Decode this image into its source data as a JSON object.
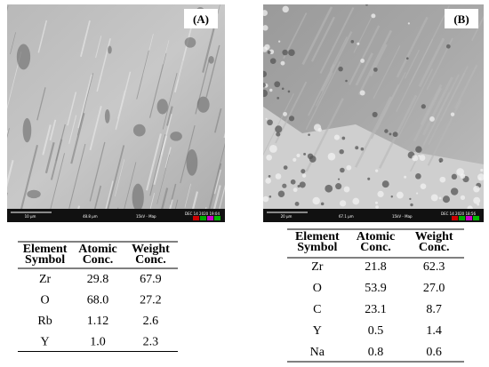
{
  "panels": [
    {
      "label": "(A)",
      "info_bar": {
        "scale": "10 µm",
        "field": "48.8 µm",
        "mode": "15kV - Map",
        "date": "DEC 14 2020 19:04"
      },
      "table": {
        "headers": [
          [
            "Element",
            "Symbol"
          ],
          [
            "Atomic",
            "Conc."
          ],
          [
            "Weight",
            "Conc."
          ]
        ],
        "rows": [
          [
            "Zr",
            "29.8",
            "67.9"
          ],
          [
            "O",
            "68.0",
            "27.2"
          ],
          [
            "Rb",
            "1.12",
            "2.6"
          ],
          [
            "Y",
            "1.0",
            "2.3"
          ]
        ]
      }
    },
    {
      "label": "(B)",
      "info_bar": {
        "scale": "20 µm",
        "field": "67.1 µm",
        "mode": "15kV - Map",
        "date": "DEC 14 2020 18:56"
      },
      "table": {
        "headers": [
          [
            "Element",
            "Symbol"
          ],
          [
            "Atomic",
            "Conc."
          ],
          [
            "Weight",
            "Conc."
          ]
        ],
        "rows": [
          [
            "Zr",
            "21.8",
            "62.3"
          ],
          [
            "O",
            "53.9",
            "27.0"
          ],
          [
            "C",
            "23.1",
            "8.7"
          ],
          [
            "Y",
            "0.5",
            "1.4"
          ],
          [
            "Na",
            "0.8",
            "0.6"
          ]
        ]
      }
    }
  ]
}
